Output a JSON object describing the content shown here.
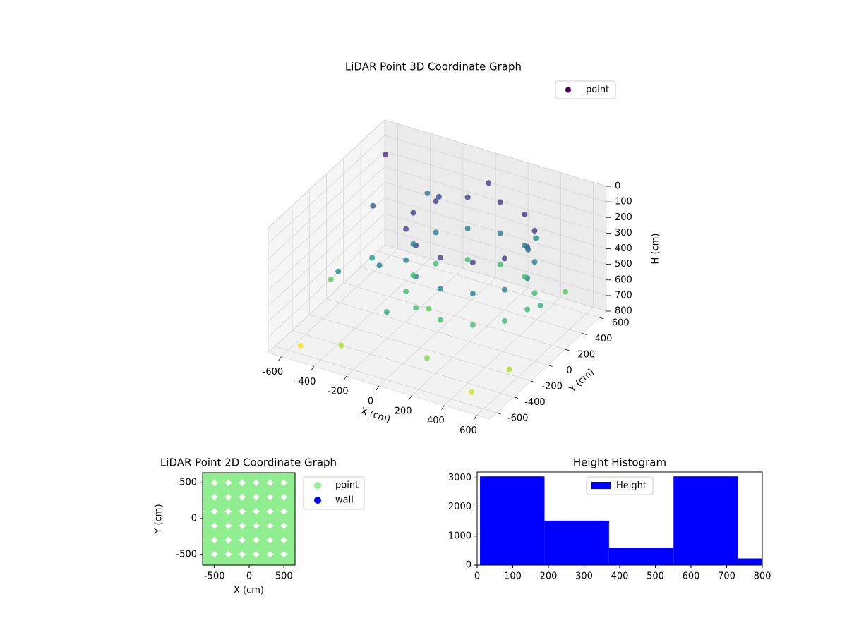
{
  "chart_data": [
    {
      "type": "scatter3d",
      "title": "LiDAR Point 3D Coordinate Graph",
      "xlabel": "X (cm)",
      "ylabel": "Y (cm)",
      "zlabel": "H (cm)",
      "xlim": [
        -680,
        680
      ],
      "ylim": [
        -680,
        680
      ],
      "zlim": [
        800,
        0
      ],
      "xticks": [
        -600,
        -400,
        -200,
        0,
        200,
        400,
        600
      ],
      "yticks": [
        -600,
        -400,
        -200,
        0,
        200,
        400,
        600
      ],
      "zticks": [
        0,
        100,
        200,
        300,
        400,
        500,
        600,
        700,
        800
      ],
      "grid": true,
      "colormap": "viridis",
      "legend": "upper right",
      "series": [
        {
          "name": "point",
          "color": "#440154",
          "x": [
            500,
            453,
            325,
            150,
            -25,
            -153,
            -200,
            -153,
            -25,
            150,
            325,
            453,
            500,
            453,
            325,
            150,
            -25,
            -153,
            -200,
            -153,
            -25,
            150,
            325,
            453,
            500,
            453,
            325,
            150,
            -25,
            -153,
            -200,
            -153,
            -25,
            150,
            325,
            453,
            -580,
            -500,
            -450,
            -600,
            -350,
            -300,
            -200,
            0,
            300,
            550,
            600,
            500,
            200,
            -100,
            -550,
            400,
            -400,
            0,
            -250,
            580
          ],
          "y": [
            100,
            275,
            403,
            450,
            403,
            275,
            100,
            -75,
            -203,
            -250,
            -203,
            -75,
            100,
            275,
            403,
            450,
            403,
            275,
            100,
            -75,
            -203,
            -250,
            -203,
            -75,
            100,
            275,
            403,
            450,
            403,
            275,
            100,
            -75,
            -203,
            -250,
            -203,
            -75,
            500,
            200,
            -300,
            -100,
            550,
            -550,
            400,
            600,
            580,
            450,
            -300,
            -550,
            -500,
            -400,
            -550,
            300,
            0,
            -100,
            -200,
            100
          ],
          "z": [
            150,
            150,
            150,
            150,
            150,
            150,
            150,
            150,
            150,
            150,
            150,
            150,
            350,
            350,
            350,
            350,
            350,
            350,
            350,
            350,
            350,
            350,
            350,
            350,
            550,
            550,
            550,
            550,
            550,
            550,
            550,
            550,
            550,
            550,
            550,
            550,
            100,
            250,
            400,
            600,
            300,
            700,
            200,
            150,
            400,
            600,
            700,
            750,
            650,
            500,
            780,
            300,
            450,
            600,
            350,
            500
          ]
        }
      ]
    },
    {
      "type": "scatter",
      "title": "LiDAR Point 2D Coordinate Graph",
      "xlabel": "X (cm)",
      "ylabel": "Y (cm)",
      "xlim": [
        -670,
        660
      ],
      "ylim": [
        -650,
        640
      ],
      "xticks": [
        -500,
        0,
        500
      ],
      "yticks": [
        -500,
        0,
        500
      ],
      "legend": "outside upper right",
      "series": [
        {
          "name": "point",
          "color": "#90ee90",
          "x": [
            -600,
            -400,
            -200,
            0,
            200,
            400,
            600,
            -600,
            -400,
            -200,
            0,
            200,
            400,
            600,
            -600,
            -400,
            -200,
            0,
            200,
            400,
            600,
            -600,
            -400,
            -200,
            0,
            200,
            400,
            600,
            -600,
            -400,
            -200,
            0,
            200,
            400,
            600,
            -600,
            -400,
            -200,
            0,
            200,
            400,
            600,
            -600,
            -400,
            -200,
            0,
            200,
            400,
            600
          ],
          "y": [
            -600,
            -600,
            -600,
            -600,
            -600,
            -600,
            -600,
            -400,
            -400,
            -400,
            -400,
            -400,
            -400,
            -400,
            -200,
            -200,
            -200,
            -200,
            -200,
            -200,
            -200,
            0,
            0,
            0,
            0,
            0,
            0,
            0,
            200,
            200,
            200,
            200,
            200,
            200,
            200,
            400,
            400,
            400,
            400,
            400,
            400,
            400,
            600,
            600,
            600,
            600,
            600,
            600,
            600
          ]
        },
        {
          "name": "wall",
          "color": "#0000ff",
          "x": [],
          "y": []
        }
      ]
    },
    {
      "type": "histogram",
      "title": "Height Histogram",
      "bins": [
        8,
        189,
        370,
        551,
        732,
        913
      ],
      "counts": [
        3050,
        1530,
        600,
        3050,
        230
      ],
      "xlim": [
        0,
        800
      ],
      "ylim": [
        0,
        3200
      ],
      "xticks": [
        0,
        100,
        200,
        300,
        400,
        500,
        600,
        700,
        800
      ],
      "yticks": [
        0,
        1000,
        2000,
        3000
      ],
      "legend": "upper center",
      "series_name": "Height",
      "color": "#0000ff"
    }
  ]
}
